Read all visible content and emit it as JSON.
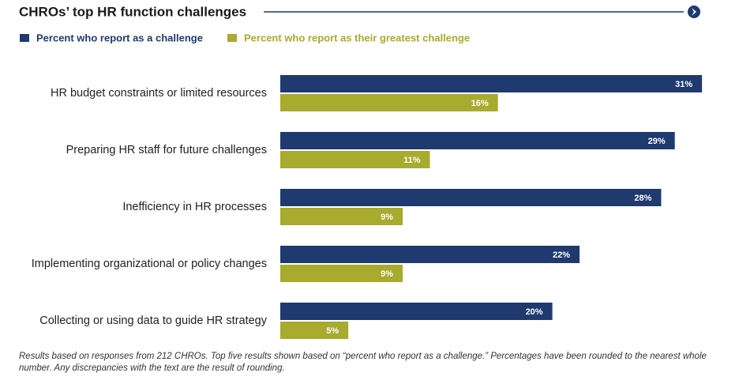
{
  "chart_data": {
    "type": "bar",
    "orientation": "horizontal",
    "title": "CHROs’ top HR function challenges",
    "categories": [
      "HR budget constraints or limited resources",
      "Preparing HR staff for future challenges",
      "Inefficiency in HR processes",
      "Implementing organizational or policy changes",
      "Collecting or using data to guide HR strategy"
    ],
    "series": [
      {
        "name": "Percent who report as a challenge",
        "color": "#1f3a6e",
        "values": [
          31,
          29,
          28,
          22,
          20
        ],
        "value_labels": [
          "31%",
          "29%",
          "28%",
          "22%",
          "20%"
        ]
      },
      {
        "name": "Percent who report as their greatest challenge",
        "color": "#a8ab2e",
        "values": [
          16,
          11,
          9,
          9,
          5
        ],
        "value_labels": [
          "16%",
          "11%",
          "9%",
          "9%",
          "5%"
        ]
      }
    ],
    "note": "Results based on responses from 212 CHROs. Top five results shown based on “percent who report as a challenge.” Percentages have been rounded to the nearest whole number. Any discrepancies with the text are the result of rounding."
  }
}
